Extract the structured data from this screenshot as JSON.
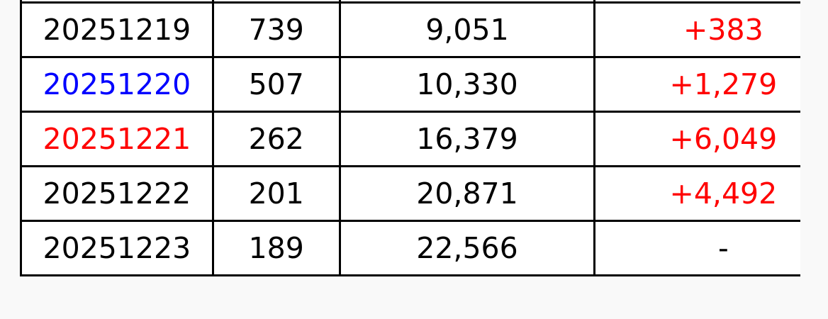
{
  "colors": {
    "blue_date": "#0000ff",
    "red_date": "#ff0000",
    "positive_change": "#ff0000",
    "default_text": "#000000"
  },
  "table": {
    "rows": [
      {
        "date": "",
        "count": "",
        "total": "",
        "change": "",
        "date_color": "#000000"
      },
      {
        "date": "20251219",
        "count": "739",
        "total": "9,051",
        "change": "+383",
        "date_color": "#000000",
        "change_color": "#ff0000"
      },
      {
        "date": "20251220",
        "count": "507",
        "total": "10,330",
        "change": "+1,279",
        "date_color": "#0000ff",
        "change_color": "#ff0000"
      },
      {
        "date": "20251221",
        "count": "262",
        "total": "16,379",
        "change": "+6,049",
        "date_color": "#ff0000",
        "change_color": "#ff0000"
      },
      {
        "date": "20251222",
        "count": "201",
        "total": "20,871",
        "change": "+4,492",
        "date_color": "#000000",
        "change_color": "#ff0000"
      },
      {
        "date": "20251223",
        "count": "189",
        "total": "22,566",
        "change": "-",
        "date_color": "#000000",
        "change_color": "#000000"
      }
    ]
  }
}
